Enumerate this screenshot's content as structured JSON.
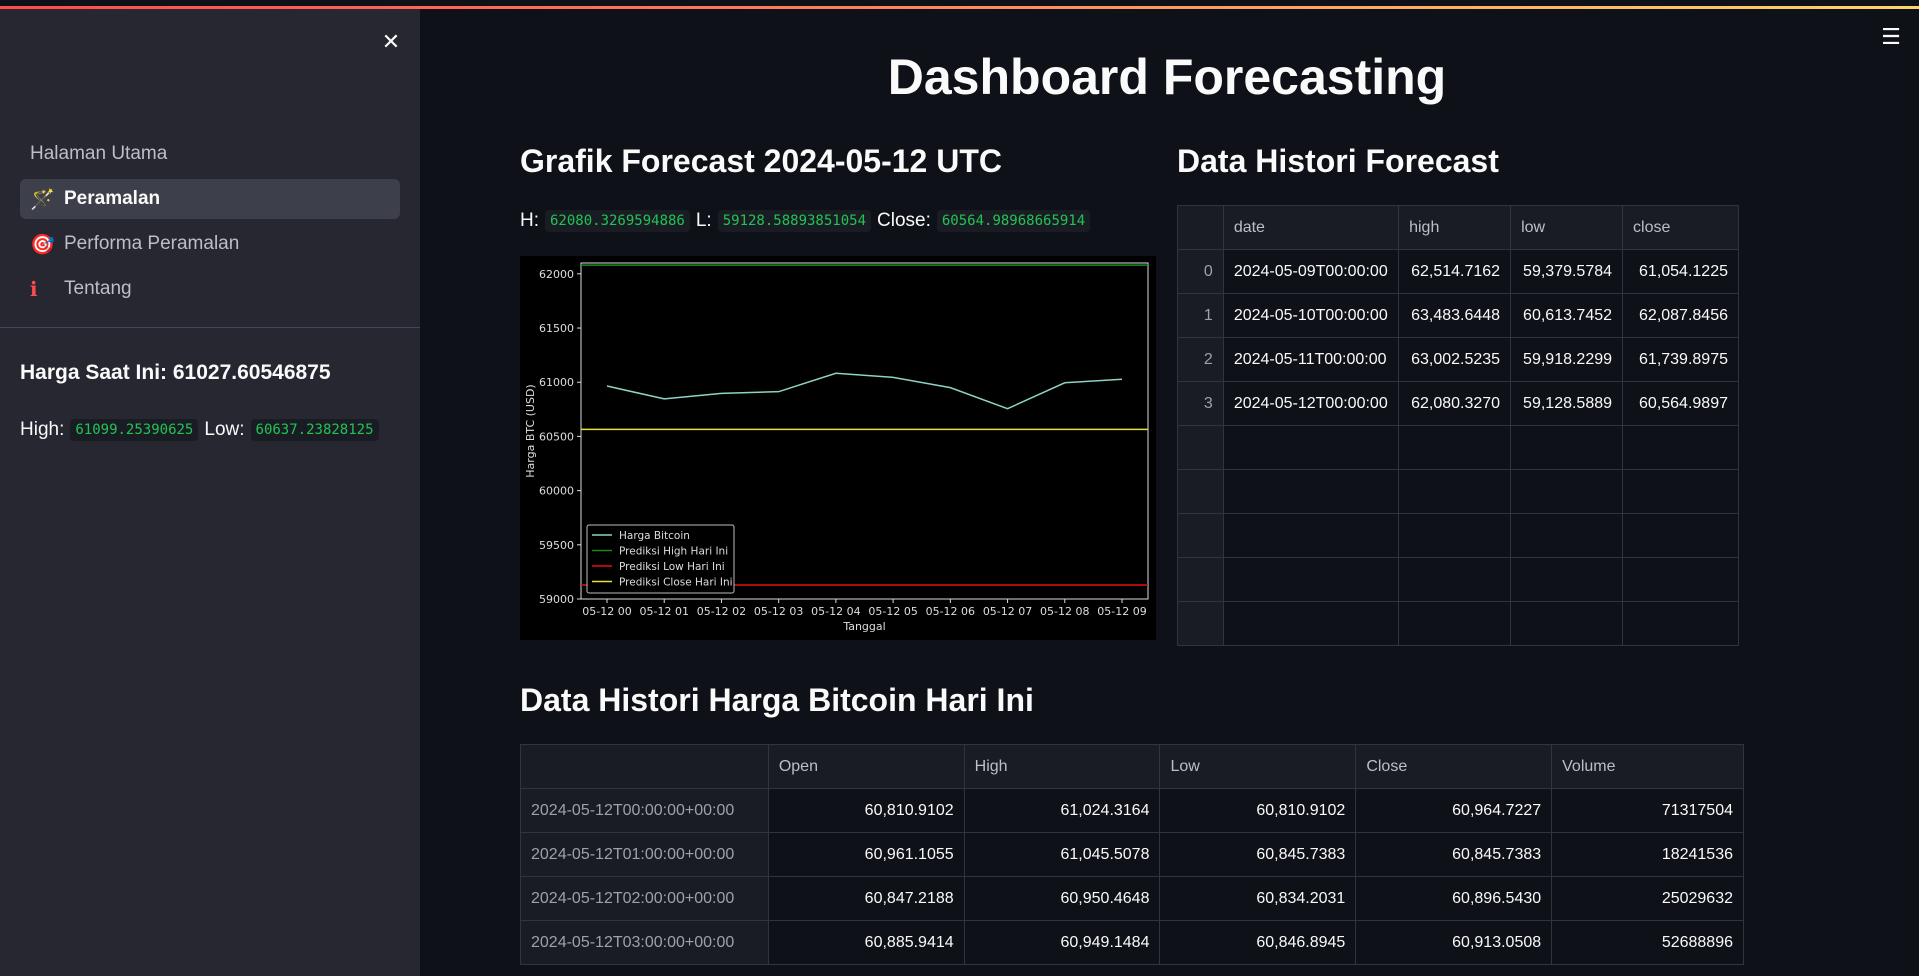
{
  "sidebar": {
    "nav": [
      {
        "label": "Halaman Utama",
        "icon": "",
        "active": false
      },
      {
        "label": "Peramalan",
        "icon": "🪄",
        "active": true
      },
      {
        "label": "Performa Peramalan",
        "icon": "🎯",
        "active": false
      },
      {
        "label": "Tentang",
        "icon": "ℹ",
        "active": false
      }
    ],
    "price_now": "Harga Saat Ini: 61027.60546875",
    "high_label": "High:",
    "high_value": "61099.25390625",
    "low_label": "Low:",
    "low_value": "60637.23828125"
  },
  "main": {
    "title": "Dashboard Forecasting",
    "forecast_title": "Grafik Forecast 2024-05-12 UTC",
    "h_label": "H:",
    "h_value": "62080.3269594886",
    "l_label": "L:",
    "l_value": "59128.58893851054",
    "close_label": "Close:",
    "close_value": "60564.98968665914",
    "history_forecast_title": "Data Histori Forecast",
    "history_price_title": "Data Histori Harga Bitcoin Hari Ini"
  },
  "forecast_table": {
    "columns": [
      "",
      "date",
      "high",
      "low",
      "close"
    ],
    "rows": [
      [
        "0",
        "2024-05-09T00:00:00",
        "62,514.7162",
        "59,379.5784",
        "61,054.1225"
      ],
      [
        "1",
        "2024-05-10T00:00:00",
        "63,483.6448",
        "60,613.7452",
        "62,087.8456"
      ],
      [
        "2",
        "2024-05-11T00:00:00",
        "63,002.5235",
        "59,918.2299",
        "61,739.8975"
      ],
      [
        "3",
        "2024-05-12T00:00:00",
        "62,080.3270",
        "59,128.5889",
        "60,564.9897"
      ]
    ]
  },
  "price_table": {
    "columns": [
      "",
      "Open",
      "High",
      "Low",
      "Close",
      "Volume"
    ],
    "rows": [
      [
        "2024-05-12T00:00:00+00:00",
        "60,810.9102",
        "61,024.3164",
        "60,810.9102",
        "60,964.7227",
        "71317504"
      ],
      [
        "2024-05-12T01:00:00+00:00",
        "60,961.1055",
        "61,045.5078",
        "60,845.7383",
        "60,845.7383",
        "18241536"
      ],
      [
        "2024-05-12T02:00:00+00:00",
        "60,847.2188",
        "60,950.4648",
        "60,834.2031",
        "60,896.5430",
        "25029632"
      ],
      [
        "2024-05-12T03:00:00+00:00",
        "60,885.9414",
        "60,949.1484",
        "60,846.8945",
        "60,913.0508",
        "52688896"
      ]
    ]
  },
  "chart_data": {
    "type": "line",
    "xlabel": "Tanggal",
    "ylabel": "Harga BTC (USD)",
    "ylim": [
      59000,
      62100
    ],
    "yticks": [
      59000,
      59500,
      60000,
      60500,
      61000,
      61500,
      62000
    ],
    "categories": [
      "05-12 00",
      "05-12 01",
      "05-12 02",
      "05-12 03",
      "05-12 04",
      "05-12 05",
      "05-12 06",
      "05-12 07",
      "05-12 08",
      "05-12 09"
    ],
    "series": [
      {
        "name": "Harga Bitcoin",
        "color": "#8fd3c7",
        "values": [
          60965,
          60846,
          60897,
          60913,
          61083,
          61045,
          60950,
          60756,
          60995,
          61028
        ]
      }
    ],
    "hlines": [
      {
        "name": "Prediksi High Hari Ini",
        "color": "#1a8a1a",
        "value": 62080.3
      },
      {
        "name": "Prediksi Low Hari Ini",
        "color": "#e01010",
        "value": 59128.6
      },
      {
        "name": "Prediksi Close Hari Ini",
        "color": "#e8e040",
        "value": 60565.0
      }
    ],
    "legend": "lower-left"
  }
}
